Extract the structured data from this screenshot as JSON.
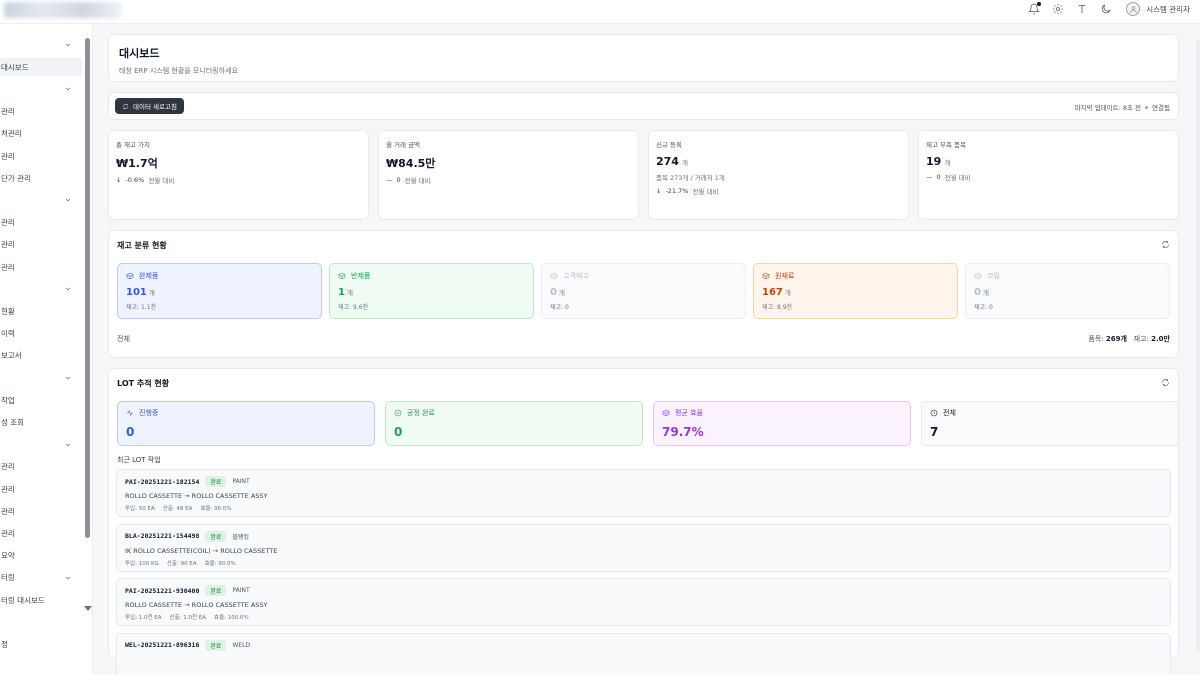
{
  "topbar": {
    "user_name": "시스템 관리자",
    "icons": [
      "bell-icon",
      "gear-icon",
      "text-size-icon",
      "moon-icon",
      "user-icon"
    ]
  },
  "sidebar": {
    "items": [
      {
        "label": "",
        "chevron": true
      },
      {
        "label": "대시보드",
        "active": true
      },
      {
        "label": "",
        "chevron": true
      },
      {
        "label": "관리"
      },
      {
        "label": "처관리"
      },
      {
        "label": "관리"
      },
      {
        "label": "단가 관리"
      },
      {
        "label": "",
        "chevron": true
      },
      {
        "label": "관리"
      },
      {
        "label": "관리"
      },
      {
        "label": "관리"
      },
      {
        "label": "",
        "chevron": true
      },
      {
        "label": "현황"
      },
      {
        "label": "이력"
      },
      {
        "label": "보고서"
      },
      {
        "label": "",
        "chevron": true
      },
      {
        "label": "작업"
      },
      {
        "label": "성 조회"
      },
      {
        "label": "",
        "chevron": true
      },
      {
        "label": "관리"
      },
      {
        "label": "관리"
      },
      {
        "label": "관리"
      },
      {
        "label": "관리"
      },
      {
        "label": "요약"
      },
      {
        "label": "터링",
        "chevron": true
      },
      {
        "label": "터링 대시보드"
      },
      {
        "label": ""
      },
      {
        "label": "정"
      }
    ]
  },
  "header": {
    "title": "대시보드",
    "subtitle": "태창 ERP 시스템 현황을 모니터링하세요"
  },
  "toolbar": {
    "refresh_label": "데이터 새로고침",
    "last_update": "마지막 업데이트: 8초 전",
    "connection": "연결됨"
  },
  "stats": [
    {
      "label": "총 재고 가치",
      "value": "₩1.7억",
      "unit": "",
      "extra": "",
      "change_arrow": "↓",
      "change": "-0.6%",
      "change_note": "전월 대비"
    },
    {
      "label": "월 거래 금액",
      "value": "₩84.5만",
      "unit": "",
      "extra": "",
      "change_arrow": "—",
      "change": "0",
      "change_note": "전월 대비"
    },
    {
      "label": "신규 등록",
      "value": "274",
      "unit": "개",
      "extra": "품목 273개 / 거래처 1개",
      "change_arrow": "↓",
      "change": "-21.7%",
      "change_note": "전월 대비"
    },
    {
      "label": "재고 부족 품목",
      "value": "19",
      "unit": "개",
      "extra": "",
      "change_arrow": "—",
      "change": "0",
      "change_note": "전월 대비"
    }
  ],
  "inventory": {
    "title": "재고 분류 현황",
    "categories": [
      {
        "label": "완제품",
        "count": "101",
        "unit": "개",
        "stock": "재고: 1.1천",
        "color": "#2f5bd8",
        "bg": "#eef3ff",
        "border": "#b9cbf7"
      },
      {
        "label": "반제품",
        "count": "1",
        "unit": "개",
        "stock": "재고: 9.6천",
        "color": "#1f9d55",
        "bg": "#effbf3",
        "border": "#bfe9cf"
      },
      {
        "label": "고객재고",
        "count": "0",
        "unit": "개",
        "stock": "재고: 0",
        "color": "#b8bec7",
        "bg": "#fafbfc",
        "border": "#eceef1"
      },
      {
        "label": "원재료",
        "count": "167",
        "unit": "개",
        "stock": "재고: 8.9천",
        "color": "#c2410c",
        "bg": "#fff5ec",
        "border": "#f6d3b3"
      },
      {
        "label": "코일",
        "count": "0",
        "unit": "개",
        "stock": "재고: 0",
        "color": "#b8bec7",
        "bg": "#fafbfc",
        "border": "#eceef1"
      }
    ],
    "footer_left": "전체",
    "footer_items_label": "품목:",
    "footer_items_value": "269개",
    "footer_stock_label": "재고:",
    "footer_stock_value": "2.0만"
  },
  "lot": {
    "title": "LOT 추적 현황",
    "tiles": [
      {
        "label": "진행중",
        "value": "0",
        "icon": "activity-icon",
        "color": "#2f5bd8",
        "bg": "#eef3ff",
        "border": "#b9cbf7"
      },
      {
        "label": "공정 완료",
        "value": "0",
        "icon": "check-circle-icon",
        "color": "#1f9d55",
        "bg": "#effbf3",
        "border": "#bfe9cf"
      },
      {
        "label": "평균 효율",
        "value": "79.7%",
        "icon": "box-icon",
        "color": "#9333ea",
        "bg": "#fbf2ff",
        "border": "#e5c8f6"
      },
      {
        "label": "전체",
        "value": "7",
        "icon": "clock-icon",
        "color": "#111827",
        "bg": "#fafbfc",
        "border": "#e5e8ec"
      }
    ],
    "recent_title": "최근 LOT 작업",
    "jobs": [
      {
        "code": "PAI-20251221-182154",
        "status": "완료",
        "process": "PAINT",
        "desc": "ROLLO CASSETTE → ROLLO CASSETTE ASSY",
        "input": "투입: 50 EA",
        "output": "산출: 48 EA",
        "efficiency": "효율: 96.0%"
      },
      {
        "code": "BLA-20251221-154498",
        "status": "완료",
        "process": "블랭킹",
        "desc": "IK ROLLO CASSETTE(COIL) → ROLLO CASSETTE",
        "input": "투입: 100 KG",
        "output": "산출: 90 EA",
        "efficiency": "효율: 90.0%"
      },
      {
        "code": "PAI-20251221-930400",
        "status": "완료",
        "process": "PAINT",
        "desc": "ROLLO CASSETTE → ROLLO CASSETTE ASSY",
        "input": "투입: 1.0천 EA",
        "output": "산출: 1.0천 EA",
        "efficiency": "효율: 100.0%"
      },
      {
        "code": "WEL-20251221-896316",
        "status": "완료",
        "process": "WELD",
        "desc": "",
        "input": "",
        "output": "",
        "efficiency": ""
      }
    ]
  }
}
